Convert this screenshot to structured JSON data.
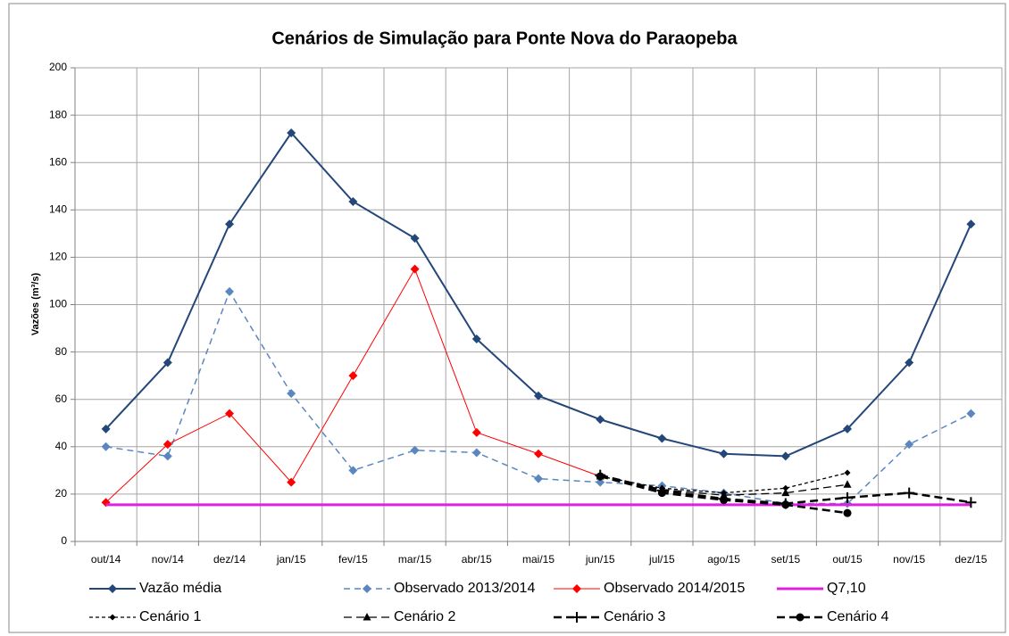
{
  "chart_data": {
    "type": "line",
    "title": "Cenários de Simulação para Ponte Nova do Paraopeba",
    "y_label": "Vazões (m³/s)",
    "categories": [
      "out/14",
      "nov/14",
      "dez/14",
      "jan/15",
      "fev/15",
      "mar/15",
      "abr/15",
      "mai/15",
      "jun/15",
      "jul/15",
      "ago/15",
      "set/15",
      "out/15",
      "nov/15",
      "dez/15"
    ],
    "ylim": [
      0,
      200
    ],
    "yticks": [
      0,
      20,
      40,
      60,
      80,
      100,
      120,
      140,
      160,
      180,
      200
    ],
    "grid": true,
    "legend": "bottom",
    "series": [
      {
        "name": "Vazão média",
        "color": "#24477a",
        "width": 2,
        "dash": "",
        "marker": "diamond",
        "values": [
          47.5,
          75.5,
          134,
          172.5,
          143.5,
          128,
          85.5,
          61.5,
          51.5,
          43.5,
          37,
          36,
          47.5,
          75.5,
          134
        ]
      },
      {
        "name": "Observado 2013/2014",
        "color": "#5b87c0",
        "width": 1.5,
        "dash": "7 5",
        "marker": "diamond",
        "values": [
          40,
          36,
          105.5,
          62.5,
          30,
          38.5,
          37.5,
          26.5,
          25,
          23.5,
          20.5,
          16,
          16,
          41,
          54
        ]
      },
      {
        "name": "Observado 2014/2015",
        "color": "#ff0000",
        "width": 1,
        "dash": "",
        "marker": "diamond",
        "values": [
          16.5,
          41,
          54,
          25,
          70,
          115,
          46,
          37,
          27.5,
          null,
          null,
          null,
          null,
          null,
          null
        ]
      },
      {
        "name": "Q7,10",
        "color": "#e020e0",
        "width": 3,
        "dash": "",
        "marker": "none",
        "values": [
          15.5,
          15.5,
          15.5,
          15.5,
          15.5,
          15.5,
          15.5,
          15.5,
          15.5,
          15.5,
          15.5,
          15.5,
          15.5,
          15.5,
          15.5
        ]
      },
      {
        "name": "Cenário 1",
        "color": "#000000",
        "width": 1.3,
        "dash": "4 3",
        "marker": "smalldiamond",
        "values": [
          null,
          null,
          null,
          null,
          null,
          null,
          null,
          null,
          27.5,
          22.5,
          20.5,
          22.5,
          29,
          null,
          null
        ]
      },
      {
        "name": "Cenário 2",
        "color": "#000000",
        "width": 1.3,
        "dash": "9 5",
        "marker": "triangle",
        "values": [
          null,
          null,
          null,
          null,
          null,
          null,
          null,
          null,
          27.5,
          22,
          19.5,
          20.5,
          24,
          null,
          null
        ]
      },
      {
        "name": "Cenário 3",
        "color": "#000000",
        "width": 2.5,
        "dash": "9 5",
        "marker": "plus",
        "values": [
          null,
          null,
          null,
          null,
          null,
          null,
          null,
          null,
          28,
          21.5,
          18,
          16,
          18.5,
          20.5,
          16.5
        ]
      },
      {
        "name": "Cenário 4",
        "color": "#000000",
        "width": 2.5,
        "dash": "9 5",
        "marker": "circle",
        "values": [
          null,
          null,
          null,
          null,
          null,
          null,
          null,
          null,
          27.5,
          20.5,
          17.5,
          15.5,
          12,
          null,
          null
        ]
      }
    ]
  }
}
